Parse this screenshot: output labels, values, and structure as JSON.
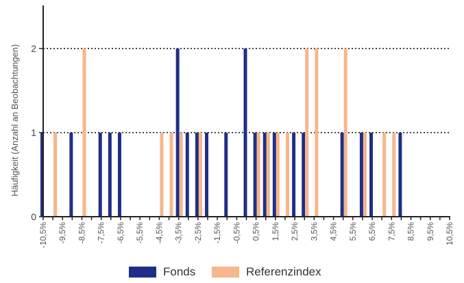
{
  "chart_data": {
    "type": "bar",
    "ylabel": "Häufigkeit (Anzahl an Beobachtungen)",
    "xlabel": "",
    "ylim": [
      0,
      2.5
    ],
    "yticks": [
      0,
      1,
      2
    ],
    "categories": [
      "-10,5%",
      "-10,0%",
      "-9,5%",
      "-9,0%",
      "-8,5%",
      "-8,0%",
      "-7,5%",
      "-7,0%",
      "-6,5%",
      "-6,0%",
      "-5,5%",
      "-5,0%",
      "-4,5%",
      "-4,0%",
      "-3,5%",
      "-3,0%",
      "-2,5%",
      "-2,0%",
      "-1,5%",
      "-1,0%",
      "-0,5%",
      "0,0%",
      "0,5%",
      "1,0%",
      "1,5%",
      "2,0%",
      "2,5%",
      "3,0%",
      "3,5%",
      "4,0%",
      "4,5%",
      "5,0%",
      "5,5%",
      "6,0%",
      "6,5%",
      "7,0%",
      "7,5%",
      "8,0%",
      "8,5%",
      "9,0%",
      "9,5%",
      "10,0%",
      "10,5%"
    ],
    "tick_labels": [
      "-10,5%",
      "-9,5%",
      "-8,5%",
      "-7,5%",
      "-6,5%",
      "-5,5%",
      "-4,5%",
      "-3,5%",
      "-2,5%",
      "-1,5%",
      "-0,5%",
      "0,5%",
      "1,5%",
      "2,5%",
      "3,5%",
      "4,5%",
      "5,5%",
      "6,5%",
      "7,5%",
      "8,5%",
      "9,5%",
      "10,5%"
    ],
    "series": [
      {
        "name": "Fonds",
        "color": "#1f2f87",
        "values": [
          1,
          0,
          0,
          1,
          0,
          0,
          1,
          1,
          1,
          0,
          0,
          0,
          0,
          0,
          2,
          1,
          1,
          1,
          0,
          1,
          0,
          2,
          1,
          1,
          1,
          0,
          1,
          1,
          0,
          0,
          0,
          1,
          0,
          1,
          1,
          0,
          0,
          1,
          0,
          0,
          0,
          0,
          0
        ]
      },
      {
        "name": "Referenzindex",
        "color": "#f7b68b",
        "values": [
          0,
          1,
          0,
          0,
          2,
          0,
          0,
          0,
          0,
          0,
          0,
          0,
          1,
          1,
          1,
          0,
          1,
          0,
          0,
          0,
          0,
          0,
          1,
          1,
          1,
          1,
          0,
          2,
          2,
          0,
          0,
          2,
          0,
          1,
          0,
          1,
          1,
          0,
          0,
          0,
          0,
          0,
          0
        ]
      }
    ],
    "grid": "dotted horizontal at y=1 and y=2",
    "legend_position": "bottom"
  }
}
